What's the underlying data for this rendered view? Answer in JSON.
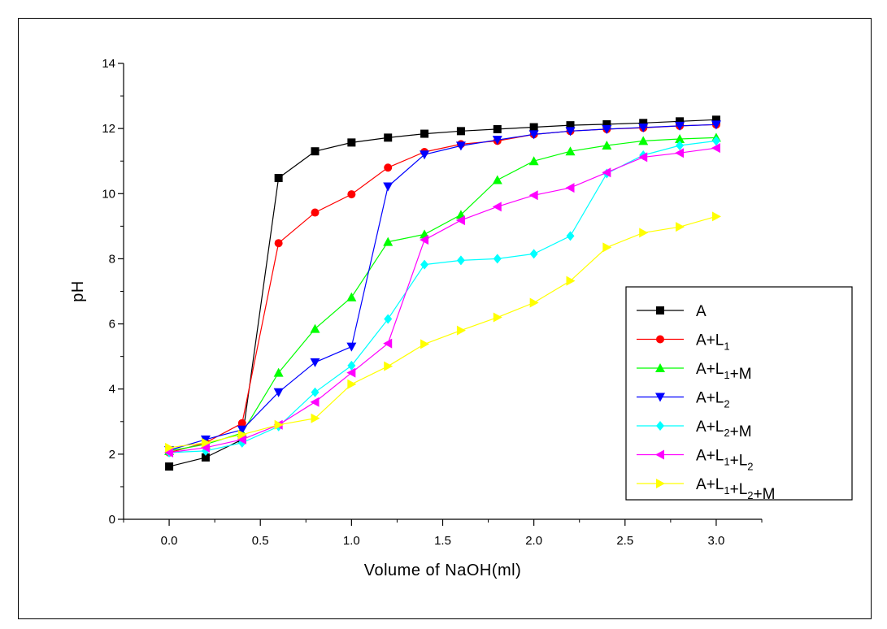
{
  "chart_data": {
    "type": "line",
    "xlabel": "Volume of NaOH(ml)",
    "ylabel": "pH",
    "xlim": [
      -0.25,
      3.25
    ],
    "ylim": [
      0,
      14
    ],
    "x_ticks": [
      "0.0",
      "0.5",
      "1.0",
      "1.5",
      "2.0",
      "2.5",
      "3.0"
    ],
    "y_ticks": [
      "0",
      "2",
      "4",
      "6",
      "8",
      "10",
      "12",
      "14"
    ],
    "grid": false,
    "legend_position": "right",
    "x": [
      0.0,
      0.2,
      0.4,
      0.6,
      0.8,
      1.0,
      1.2,
      1.4,
      1.6,
      1.8,
      2.0,
      2.2,
      2.4,
      2.6,
      2.8,
      3.0
    ],
    "series": [
      {
        "name": "A",
        "legend": {
          "base": "A",
          "parts": []
        },
        "color": "#000000",
        "marker": "square",
        "values": [
          1.62,
          1.9,
          2.45,
          10.48,
          11.3,
          11.57,
          11.72,
          11.84,
          11.92,
          11.98,
          12.04,
          12.1,
          12.13,
          12.17,
          12.22,
          12.27
        ]
      },
      {
        "name": "A+L1",
        "legend": {
          "base": "A",
          "parts": [
            [
              "+L",
              "1"
            ]
          ]
        },
        "color": "#ff0000",
        "marker": "circle",
        "values": [
          2.05,
          2.35,
          2.95,
          8.48,
          9.42,
          9.98,
          10.8,
          11.28,
          11.52,
          11.62,
          11.82,
          11.92,
          11.98,
          12.02,
          12.08,
          12.12
        ]
      },
      {
        "name": "A+L1+M",
        "legend": {
          "base": "A",
          "parts": [
            [
              "+L",
              "1"
            ],
            [
              "+M",
              ""
            ]
          ]
        },
        "color": "#00ff00",
        "marker": "triangle-up",
        "values": [
          2.1,
          2.3,
          2.65,
          4.5,
          5.85,
          6.82,
          8.52,
          8.75,
          9.35,
          10.42,
          11.0,
          11.3,
          11.48,
          11.62,
          11.68,
          11.72
        ]
      },
      {
        "name": "A+L2",
        "legend": {
          "base": "A",
          "parts": [
            [
              "+L",
              "2"
            ]
          ]
        },
        "color": "#0000ff",
        "marker": "triangle-down",
        "values": [
          2.12,
          2.45,
          2.75,
          3.9,
          4.82,
          5.3,
          10.22,
          11.2,
          11.47,
          11.65,
          11.82,
          11.92,
          11.98,
          12.03,
          12.08,
          12.12
        ]
      },
      {
        "name": "A+L2+M",
        "legend": {
          "base": "A",
          "parts": [
            [
              "+L",
              "2"
            ],
            [
              "+M",
              ""
            ]
          ]
        },
        "color": "#00ffff",
        "marker": "diamond",
        "values": [
          2.05,
          2.1,
          2.35,
          2.85,
          3.9,
          4.72,
          6.15,
          7.82,
          7.95,
          8.0,
          8.15,
          8.7,
          10.62,
          11.18,
          11.48,
          11.62
        ]
      },
      {
        "name": "A+L1+L2",
        "legend": {
          "base": "A",
          "parts": [
            [
              "+L",
              "1"
            ],
            [
              "+L",
              "2"
            ]
          ]
        },
        "color": "#ff00ff",
        "marker": "triangle-left",
        "values": [
          2.05,
          2.2,
          2.45,
          2.9,
          3.6,
          4.5,
          5.4,
          8.58,
          9.18,
          9.6,
          9.95,
          10.18,
          10.65,
          11.12,
          11.25,
          11.4
        ]
      },
      {
        "name": "A+L1+L2+M",
        "legend": {
          "base": "A",
          "parts": [
            [
              "+L",
              "1"
            ],
            [
              "+L",
              "2"
            ],
            [
              "+M",
              ""
            ]
          ]
        },
        "color": "#ffff00",
        "marker": "triangle-right",
        "values": [
          2.2,
          2.35,
          2.6,
          2.9,
          3.1,
          4.15,
          4.7,
          5.38,
          5.8,
          6.2,
          6.65,
          7.32,
          8.35,
          8.8,
          8.98,
          9.3
        ]
      }
    ]
  }
}
